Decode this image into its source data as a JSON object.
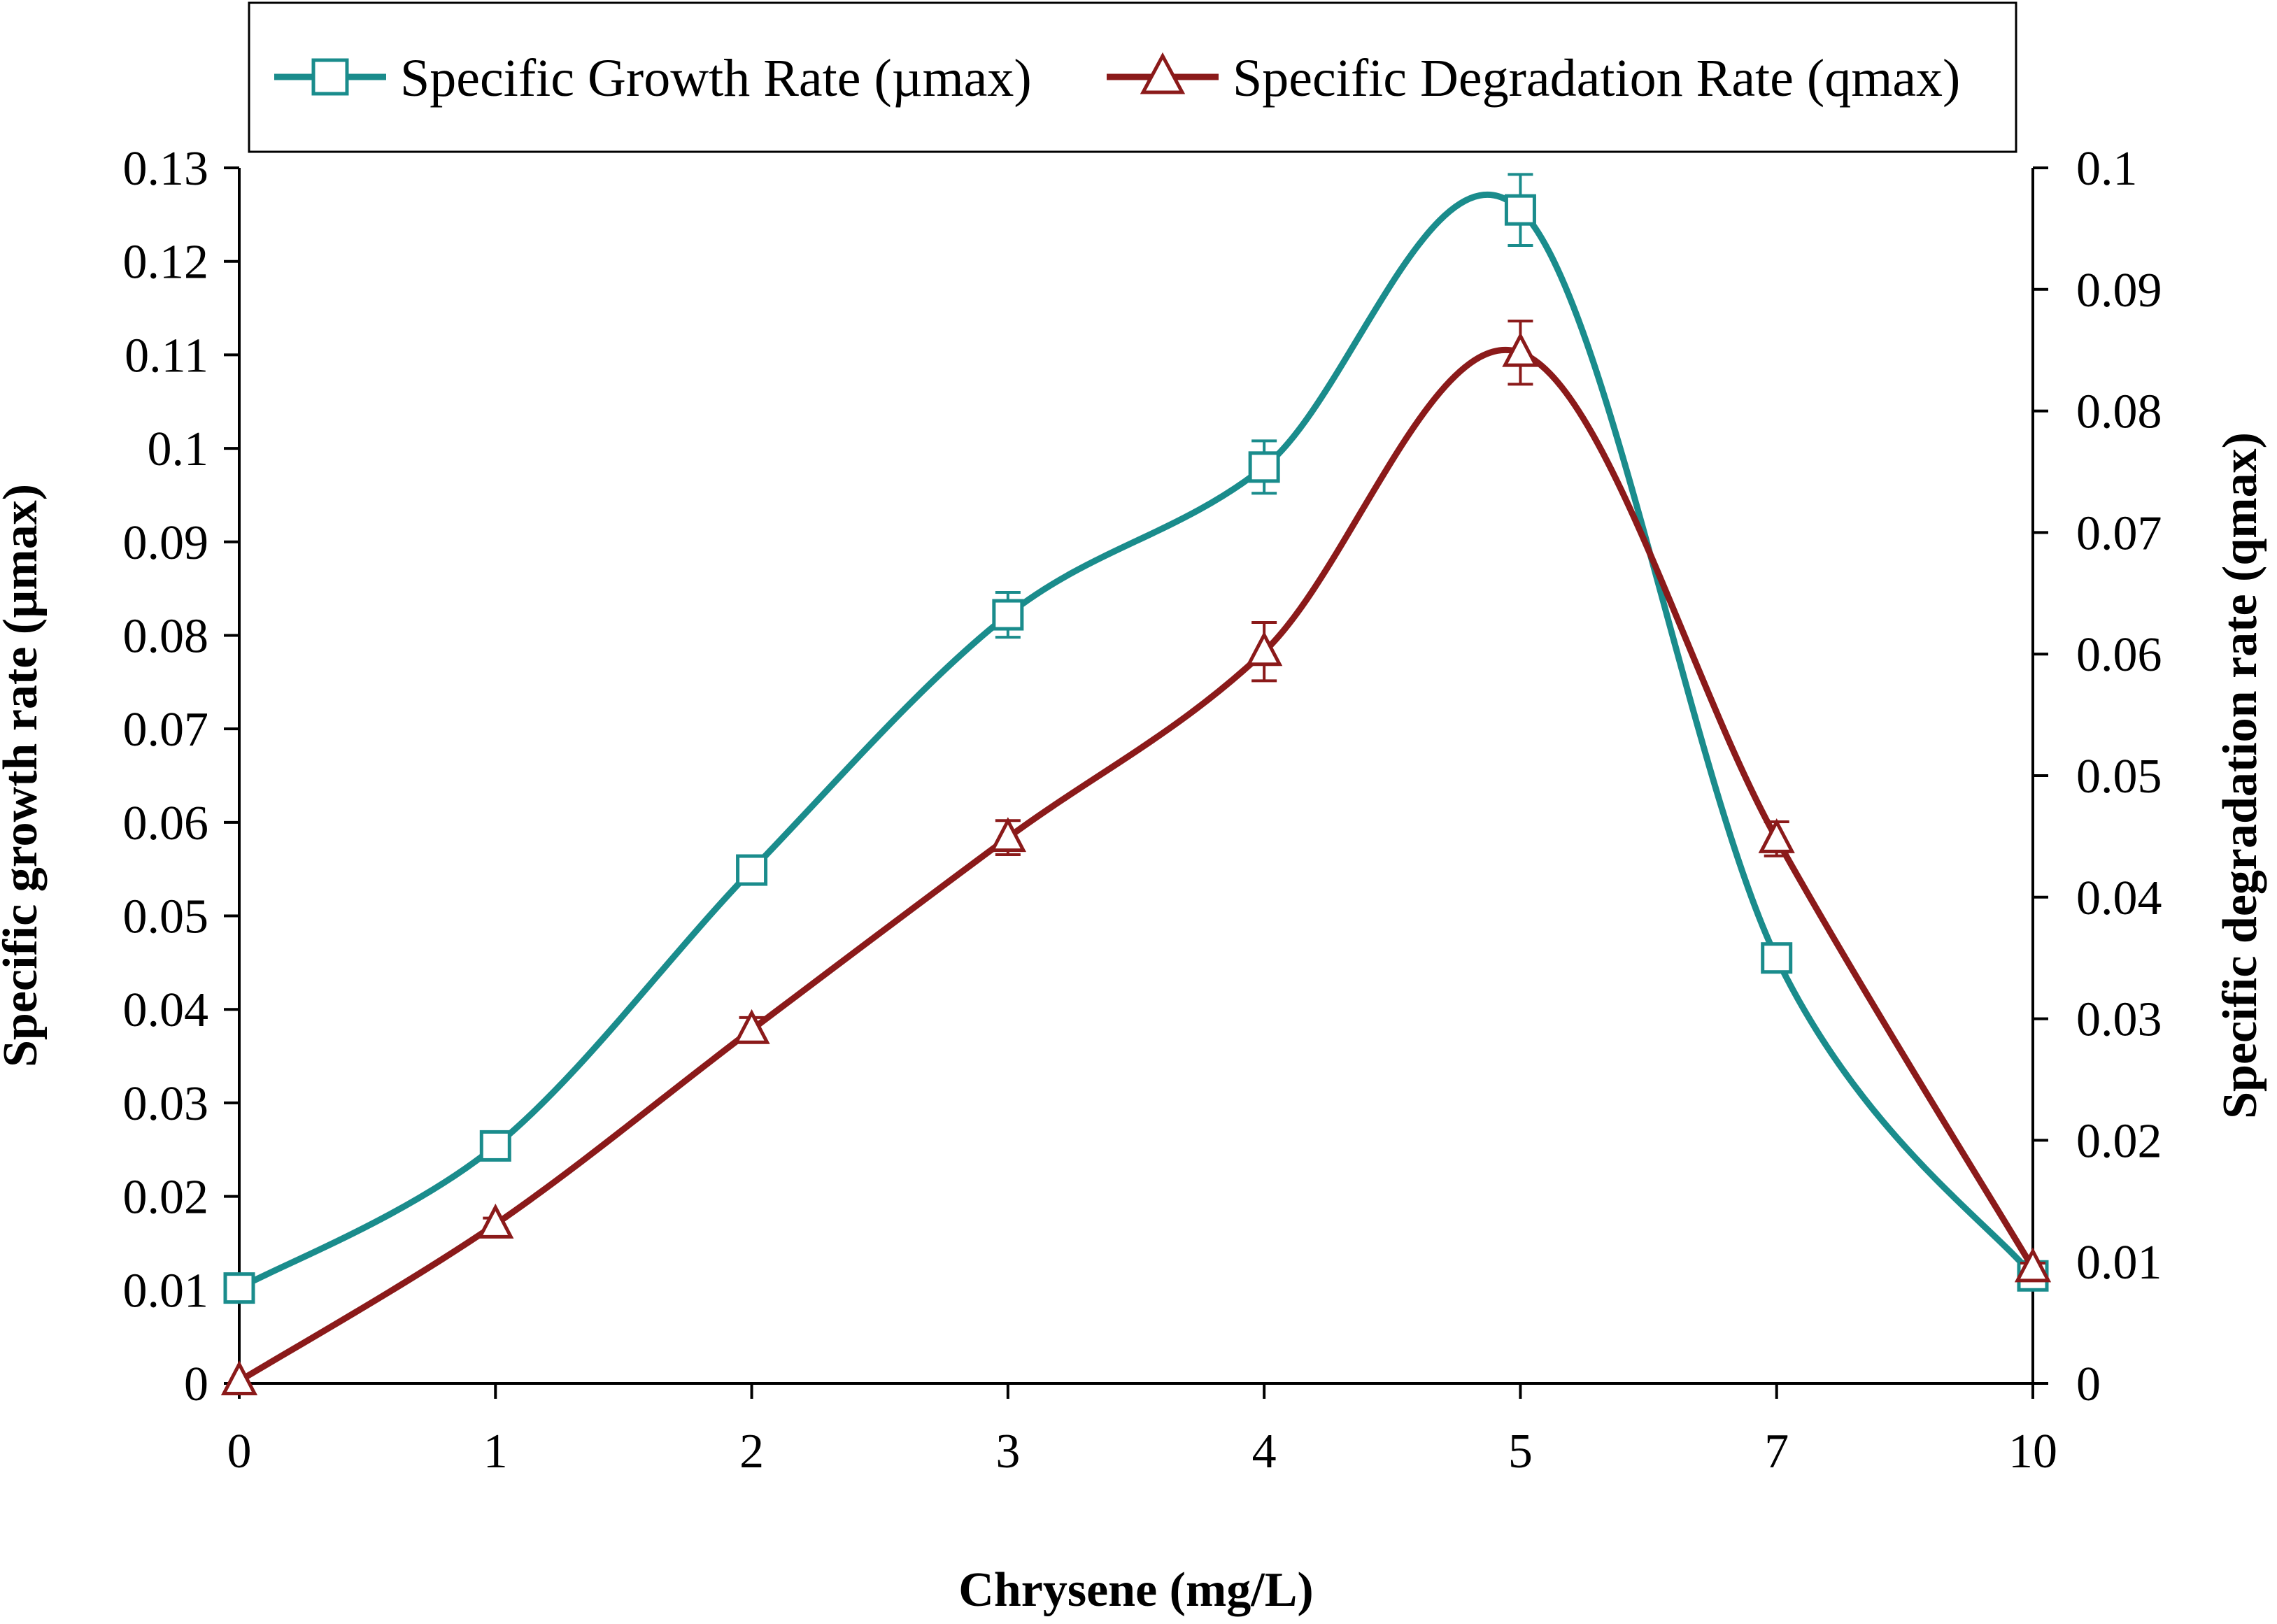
{
  "chart_data": {
    "type": "line",
    "title": "",
    "xlabel": "Chrysene (mg/L)",
    "ylabel_left": "Specific growth rate (µmax)",
    "ylabel_right": "Specific degradation rate (qmax)",
    "categories": [
      "0",
      "1",
      "2",
      "3",
      "4",
      "5",
      "7",
      "10"
    ],
    "y_left": {
      "range": [
        0,
        0.13
      ],
      "ticks": [
        "0",
        "0.01",
        "0.02",
        "0.03",
        "0.04",
        "0.05",
        "0.06",
        "0.07",
        "0.08",
        "0.09",
        "0.1",
        "0.11",
        "0.12",
        "0.13"
      ]
    },
    "y_right": {
      "range": [
        0,
        0.1
      ],
      "ticks": [
        "0",
        "0.01",
        "0.02",
        "0.03",
        "0.04",
        "0.05",
        "0.06",
        "0.07",
        "0.08",
        "0.09",
        "0.1"
      ]
    },
    "grid": false,
    "legend_position": "top",
    "series": [
      {
        "name": "Specific Growth Rate (µmax)",
        "axis": "left",
        "color": "#1a8c8c",
        "marker": "square",
        "values": [
          0.0102,
          0.0254,
          0.0549,
          0.0822,
          0.098,
          0.1255,
          0.0455,
          0.0115
        ],
        "errors": [
          0.0003,
          0.0006,
          0.0015,
          0.0024,
          0.0028,
          0.0038,
          0.0015,
          0.0004
        ]
      },
      {
        "name": "Specific Degradation Rate (qmax)",
        "axis": "right",
        "color": "#8b1a1a",
        "marker": "triangle",
        "values": [
          0.0002,
          0.0131,
          0.0291,
          0.0449,
          0.0602,
          0.0848,
          0.0448,
          0.0095
        ],
        "errors": [
          0.0,
          0.0005,
          0.001,
          0.0014,
          0.0024,
          0.0026,
          0.0014,
          0.0004
        ]
      }
    ]
  }
}
